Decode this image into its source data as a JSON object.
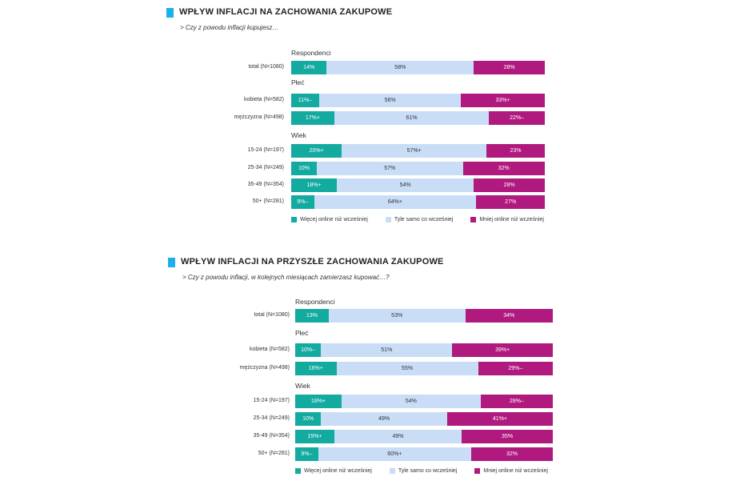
{
  "colors": {
    "more": "#13aaa0",
    "same": "#c9ddf7",
    "less": "#b0197e",
    "accent": "#1ab0e8"
  },
  "legend": [
    "Więcej online niż wcześniej",
    "Tyle samo co wcześniej",
    "Mniej online niż wcześniej"
  ],
  "chart_data": [
    {
      "type": "bar",
      "stacked": true,
      "orientation": "horizontal",
      "title": "WPŁYW INFLACJI NA ZACHOWANIA ZAKUPOWE",
      "subtitle": "> Czy z powodu inflacji kupujesz…",
      "series": [
        "Więcej online niż wcześniej",
        "Tyle samo co wcześniej",
        "Mniej online niż wcześniej"
      ],
      "groups": [
        {
          "name": "Respondenci",
          "rows": [
            {
              "label": "total (N=1080)",
              "values": [
                14,
                58,
                28
              ],
              "texts": [
                "14%",
                "58%",
                "28%"
              ]
            }
          ]
        },
        {
          "name": "Płeć",
          "rows": [
            {
              "label": "kobieta (N=582)",
              "values": [
                11,
                56,
                33
              ],
              "texts": [
                "11%–",
                "56%",
                "33%+"
              ]
            },
            {
              "label": "mężczyzna (N=498)",
              "values": [
                17,
                61,
                22
              ],
              "texts": [
                "17%+",
                "61%",
                "22%–"
              ]
            }
          ]
        },
        {
          "name": "Wiek",
          "rows": [
            {
              "label": "15-24 (N=197)",
              "values": [
                20,
                57,
                23
              ],
              "texts": [
                "20%+",
                "57%+",
                "23%"
              ]
            },
            {
              "label": "25-34 (N=249)",
              "values": [
                10,
                57,
                32
              ],
              "texts": [
                "10%",
                "57%",
                "32%"
              ]
            },
            {
              "label": "35-49 (N=354)",
              "values": [
                18,
                54,
                28
              ],
              "texts": [
                "18%+",
                "54%",
                "28%"
              ]
            },
            {
              "label": "50+ (N=281)",
              "values": [
                9,
                64,
                27
              ],
              "texts": [
                "9%–",
                "64%+",
                "27%"
              ]
            }
          ]
        }
      ]
    },
    {
      "type": "bar",
      "stacked": true,
      "orientation": "horizontal",
      "title": "WPŁYW INFLACJI NA PRZYSZŁE ZACHOWANIA ZAKUPOWE",
      "subtitle": "> Czy z powodu inflacji, w kolejnych miesiącach zamierzasz kupować…?",
      "series": [
        "Więcej online niż wcześniej",
        "Tyle samo co wcześniej",
        "Mniej online niż wcześniej"
      ],
      "groups": [
        {
          "name": "Respondenci",
          "rows": [
            {
              "label": "total (N=1080)",
              "values": [
                13,
                53,
                34
              ],
              "texts": [
                "13%",
                "53%",
                "34%"
              ]
            }
          ]
        },
        {
          "name": "Płeć",
          "rows": [
            {
              "label": "kobieta (N=582)",
              "values": [
                10,
                51,
                39
              ],
              "texts": [
                "10%–",
                "51%",
                "39%+"
              ]
            },
            {
              "label": "mężczyzna (N=498)",
              "values": [
                16,
                55,
                29
              ],
              "texts": [
                "16%+",
                "55%",
                "29%–"
              ]
            }
          ]
        },
        {
          "name": "Wiek",
          "rows": [
            {
              "label": "15-24 (N=197)",
              "values": [
                18,
                54,
                28
              ],
              "texts": [
                "18%+",
                "54%",
                "28%–"
              ]
            },
            {
              "label": "25-34 (N=249)",
              "values": [
                10,
                49,
                41
              ],
              "texts": [
                "10%",
                "49%",
                "41%+"
              ]
            },
            {
              "label": "35-49 (N=354)",
              "values": [
                15,
                49,
                35
              ],
              "texts": [
                "15%+",
                "49%",
                "35%"
              ]
            },
            {
              "label": "50+ (N=281)",
              "values": [
                9,
                60,
                32
              ],
              "texts": [
                "9%–",
                "60%+",
                "32%"
              ]
            }
          ]
        }
      ]
    }
  ]
}
